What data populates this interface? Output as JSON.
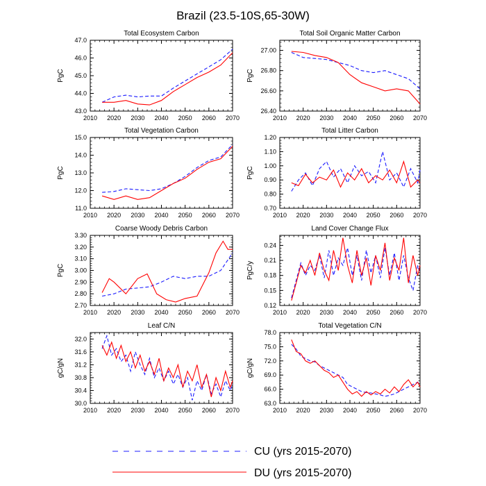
{
  "title": "Brazil (23.5-10S,65-30W)",
  "colors": {
    "cu": "#1a1aff",
    "du": "#ff0000",
    "axis": "#000000"
  },
  "legend": {
    "cu_label": "CU (yrs 2015-2070)",
    "du_label": "DU (yrs 2015-2070)"
  },
  "chart_data": [
    {
      "type": "line",
      "title": "Total Ecosystem Carbon",
      "ylabel": "PgC",
      "xlabel": "",
      "xlim": [
        2010,
        2070
      ],
      "xticks": [
        "2010",
        "2020",
        "2030",
        "2040",
        "2050",
        "2060",
        "2070"
      ],
      "ylim": [
        43.0,
        47.0
      ],
      "yticks": [
        "43.0",
        "44.0",
        "45.0",
        "46.0",
        "47.0"
      ],
      "series": [
        {
          "name": "CU",
          "x": [
            2015,
            2020,
            2025,
            2030,
            2035,
            2040,
            2045,
            2050,
            2055,
            2060,
            2065,
            2070
          ],
          "values": [
            43.5,
            43.8,
            43.9,
            43.8,
            43.85,
            43.85,
            44.3,
            44.7,
            45.1,
            45.5,
            45.9,
            46.5
          ]
        },
        {
          "name": "DU",
          "x": [
            2015,
            2020,
            2025,
            2030,
            2035,
            2040,
            2045,
            2050,
            2055,
            2060,
            2065,
            2070
          ],
          "values": [
            43.5,
            43.5,
            43.6,
            43.4,
            43.35,
            43.6,
            44.1,
            44.5,
            44.9,
            45.2,
            45.6,
            46.3
          ]
        }
      ]
    },
    {
      "type": "line",
      "title": "Total Soil Organic Matter Carbon",
      "ylabel": "PgC",
      "xlabel": "",
      "xlim": [
        2010,
        2070
      ],
      "xticks": [
        "2010",
        "2020",
        "2030",
        "2040",
        "2050",
        "2060",
        "2070"
      ],
      "ylim": [
        26.4,
        27.1
      ],
      "yticks": [
        "26.40",
        "26.60",
        "26.80",
        "27.00"
      ],
      "series": [
        {
          "name": "CU",
          "x": [
            2015,
            2020,
            2025,
            2030,
            2035,
            2040,
            2045,
            2050,
            2055,
            2060,
            2065,
            2070
          ],
          "values": [
            26.98,
            26.93,
            26.92,
            26.91,
            26.88,
            26.85,
            26.8,
            26.78,
            26.8,
            26.76,
            26.72,
            26.62
          ]
        },
        {
          "name": "DU",
          "x": [
            2015,
            2020,
            2025,
            2030,
            2035,
            2040,
            2045,
            2050,
            2055,
            2060,
            2065,
            2070
          ],
          "values": [
            26.99,
            26.98,
            26.95,
            26.93,
            26.88,
            26.76,
            26.68,
            26.64,
            26.6,
            26.62,
            26.6,
            26.47
          ]
        }
      ]
    },
    {
      "type": "line",
      "title": "Total Vegetation Carbon",
      "ylabel": "PgC",
      "xlabel": "",
      "xlim": [
        2010,
        2070
      ],
      "xticks": [
        "2010",
        "2020",
        "2030",
        "2040",
        "2050",
        "2060",
        "2070"
      ],
      "ylim": [
        11.0,
        15.0
      ],
      "yticks": [
        "11.0",
        "12.0",
        "13.0",
        "14.0",
        "15.0"
      ],
      "series": [
        {
          "name": "CU",
          "x": [
            2015,
            2020,
            2025,
            2030,
            2035,
            2040,
            2045,
            2050,
            2055,
            2060,
            2065,
            2070
          ],
          "values": [
            11.9,
            11.95,
            12.1,
            12.05,
            12.0,
            12.1,
            12.4,
            12.8,
            13.3,
            13.7,
            13.9,
            14.6
          ]
        },
        {
          "name": "DU",
          "x": [
            2015,
            2020,
            2025,
            2030,
            2035,
            2040,
            2045,
            2050,
            2055,
            2060,
            2065,
            2070
          ],
          "values": [
            11.7,
            11.5,
            11.7,
            11.5,
            11.6,
            12.0,
            12.4,
            12.7,
            13.2,
            13.6,
            13.8,
            14.5
          ]
        }
      ]
    },
    {
      "type": "line",
      "title": "Total Litter Carbon",
      "ylabel": "PgC",
      "xlabel": "",
      "xlim": [
        2010,
        2070
      ],
      "xticks": [
        "2010",
        "2020",
        "2030",
        "2040",
        "2050",
        "2060",
        "2070"
      ],
      "ylim": [
        0.7,
        1.2
      ],
      "yticks": [
        "0.70",
        "0.80",
        "0.90",
        "1.00",
        "1.10",
        "1.20"
      ],
      "series": [
        {
          "name": "CU",
          "x": [
            2015,
            2018,
            2021,
            2024,
            2027,
            2030,
            2033,
            2036,
            2039,
            2042,
            2045,
            2048,
            2051,
            2054,
            2057,
            2060,
            2063,
            2066,
            2069,
            2070
          ],
          "values": [
            0.82,
            0.9,
            0.95,
            0.86,
            0.98,
            1.03,
            0.92,
            0.98,
            0.88,
            1.0,
            0.93,
            0.96,
            0.88,
            1.1,
            0.9,
            0.95,
            0.85,
            0.98,
            0.88,
            0.97
          ]
        },
        {
          "name": "DU",
          "x": [
            2015,
            2018,
            2021,
            2024,
            2027,
            2030,
            2033,
            2036,
            2039,
            2042,
            2045,
            2048,
            2051,
            2054,
            2057,
            2060,
            2063,
            2066,
            2069,
            2070
          ],
          "values": [
            0.88,
            0.86,
            0.94,
            0.88,
            0.92,
            0.9,
            0.97,
            0.85,
            0.95,
            0.9,
            0.98,
            0.88,
            0.93,
            0.9,
            0.97,
            0.88,
            1.03,
            0.85,
            0.9,
            0.88
          ]
        }
      ]
    },
    {
      "type": "line",
      "title": "Coarse Woody Debris Carbon",
      "ylabel": "PgC",
      "xlabel": "",
      "xlim": [
        2010,
        2070
      ],
      "xticks": [
        "2010",
        "2020",
        "2030",
        "2040",
        "2050",
        "2060",
        "2070"
      ],
      "ylim": [
        2.7,
        3.3
      ],
      "yticks": [
        "2.70",
        "2.80",
        "2.90",
        "3.00",
        "3.10",
        "3.20",
        "3.30"
      ],
      "series": [
        {
          "name": "CU",
          "x": [
            2015,
            2020,
            2025,
            2030,
            2035,
            2040,
            2045,
            2050,
            2055,
            2060,
            2065,
            2070
          ],
          "values": [
            2.78,
            2.8,
            2.84,
            2.85,
            2.86,
            2.9,
            2.95,
            2.93,
            2.95,
            2.95,
            3.0,
            3.15
          ]
        },
        {
          "name": "DU",
          "x": [
            2015,
            2018,
            2020,
            2025,
            2030,
            2034,
            2038,
            2042,
            2046,
            2050,
            2055,
            2060,
            2063,
            2066,
            2068,
            2070
          ],
          "values": [
            2.81,
            2.93,
            2.9,
            2.8,
            2.93,
            2.97,
            2.8,
            2.75,
            2.73,
            2.76,
            2.78,
            2.98,
            3.15,
            3.25,
            3.18,
            3.18
          ]
        }
      ]
    },
    {
      "type": "line",
      "title": "Land Cover Change Flux",
      "ylabel": "PgC/y",
      "xlabel": "",
      "xlim": [
        2010,
        2070
      ],
      "xticks": [
        "2010",
        "2020",
        "2030",
        "2040",
        "2050",
        "2060",
        "2070"
      ],
      "ylim": [
        0.12,
        0.26
      ],
      "yticks": [
        "0.12",
        "0.15",
        "0.18",
        "0.21",
        "0.24"
      ],
      "series": [
        {
          "name": "CU",
          "x": [
            2015,
            2017,
            2019,
            2021,
            2023,
            2025,
            2027,
            2029,
            2031,
            2033,
            2035,
            2037,
            2039,
            2041,
            2043,
            2045,
            2047,
            2049,
            2051,
            2053,
            2055,
            2057,
            2059,
            2061,
            2063,
            2065,
            2067,
            2069,
            2070
          ],
          "values": [
            0.135,
            0.17,
            0.205,
            0.18,
            0.2,
            0.19,
            0.22,
            0.175,
            0.23,
            0.18,
            0.215,
            0.2,
            0.235,
            0.18,
            0.22,
            0.17,
            0.23,
            0.185,
            0.22,
            0.175,
            0.235,
            0.18,
            0.225,
            0.17,
            0.22,
            0.175,
            0.15,
            0.2,
            0.185
          ]
        },
        {
          "name": "DU",
          "x": [
            2015,
            2017,
            2019,
            2021,
            2023,
            2025,
            2027,
            2029,
            2031,
            2033,
            2035,
            2037,
            2039,
            2041,
            2043,
            2045,
            2047,
            2049,
            2051,
            2053,
            2055,
            2057,
            2059,
            2061,
            2063,
            2065,
            2067,
            2069,
            2070
          ],
          "values": [
            0.13,
            0.165,
            0.2,
            0.185,
            0.21,
            0.18,
            0.225,
            0.19,
            0.17,
            0.23,
            0.19,
            0.255,
            0.2,
            0.165,
            0.23,
            0.18,
            0.215,
            0.16,
            0.22,
            0.19,
            0.245,
            0.17,
            0.215,
            0.19,
            0.255,
            0.165,
            0.22,
            0.18,
            0.2
          ]
        }
      ]
    },
    {
      "type": "line",
      "title": "Leaf C/N",
      "ylabel": "gC/gN",
      "xlabel": "",
      "xlim": [
        2010,
        2070
      ],
      "xticks": [
        "2010",
        "2020",
        "2030",
        "2040",
        "2050",
        "2060",
        "2070"
      ],
      "ylim": [
        30.0,
        32.2
      ],
      "yticks": [
        "30.0",
        "30.4",
        "30.8",
        "31.2",
        "31.6",
        "32.0"
      ],
      "series": [
        {
          "name": "CU",
          "x": [
            2015,
            2017,
            2019,
            2021,
            2023,
            2025,
            2027,
            2029,
            2031,
            2033,
            2035,
            2037,
            2039,
            2041,
            2043,
            2045,
            2047,
            2049,
            2051,
            2053,
            2055,
            2057,
            2059,
            2061,
            2063,
            2065,
            2067,
            2069,
            2070
          ],
          "values": [
            31.7,
            32.1,
            31.5,
            31.7,
            31.3,
            31.5,
            31.0,
            31.6,
            31.2,
            30.9,
            31.4,
            30.8,
            31.1,
            30.7,
            31.0,
            30.6,
            30.9,
            30.5,
            30.8,
            30.1,
            30.7,
            30.4,
            30.9,
            30.3,
            30.6,
            30.2,
            30.7,
            30.4,
            30.6
          ]
        },
        {
          "name": "DU",
          "x": [
            2015,
            2017,
            2019,
            2021,
            2023,
            2025,
            2027,
            2029,
            2031,
            2033,
            2035,
            2037,
            2039,
            2041,
            2043,
            2045,
            2047,
            2049,
            2051,
            2053,
            2055,
            2057,
            2059,
            2061,
            2063,
            2065,
            2067,
            2069,
            2070
          ],
          "values": [
            31.8,
            31.5,
            31.9,
            31.4,
            31.8,
            31.3,
            31.6,
            31.1,
            31.5,
            31.0,
            31.3,
            30.9,
            31.4,
            30.7,
            31.1,
            30.8,
            31.2,
            30.5,
            31.0,
            30.7,
            31.2,
            30.5,
            30.9,
            30.2,
            30.8,
            30.4,
            31.0,
            30.5,
            30.7
          ]
        }
      ]
    },
    {
      "type": "line",
      "title": "Total Vegetation C/N",
      "ylabel": "gC/gN",
      "xlabel": "",
      "xlim": [
        2010,
        2070
      ],
      "xticks": [
        "2010",
        "2020",
        "2030",
        "2040",
        "2050",
        "2060",
        "2070"
      ],
      "ylim": [
        63.0,
        78.0
      ],
      "yticks": [
        "63.0",
        "66.0",
        "69.0",
        "72.0",
        "75.0",
        "78.0"
      ],
      "series": [
        {
          "name": "CU",
          "x": [
            2015,
            2017,
            2019,
            2021,
            2023,
            2025,
            2027,
            2029,
            2031,
            2033,
            2035,
            2037,
            2039,
            2041,
            2043,
            2045,
            2047,
            2049,
            2051,
            2053,
            2055,
            2057,
            2059,
            2061,
            2063,
            2065,
            2067,
            2069,
            2070
          ],
          "values": [
            75.5,
            74.5,
            73.0,
            72.5,
            72.0,
            71.8,
            71.0,
            70.5,
            70.0,
            69.5,
            69.0,
            68.5,
            67.0,
            66.5,
            66.0,
            65.5,
            65.3,
            65.2,
            65.0,
            64.8,
            64.5,
            64.7,
            65.0,
            65.5,
            66.0,
            66.5,
            67.0,
            67.5,
            67.0
          ]
        },
        {
          "name": "DU",
          "x": [
            2015,
            2017,
            2019,
            2021,
            2023,
            2025,
            2027,
            2029,
            2031,
            2033,
            2035,
            2037,
            2039,
            2041,
            2043,
            2045,
            2047,
            2049,
            2051,
            2053,
            2055,
            2057,
            2059,
            2061,
            2063,
            2065,
            2067,
            2069,
            2070
          ],
          "values": [
            76.5,
            74.0,
            73.5,
            72.0,
            71.5,
            72.0,
            71.0,
            70.0,
            69.5,
            68.5,
            69.0,
            67.5,
            66.0,
            65.0,
            65.5,
            64.5,
            65.5,
            64.8,
            65.5,
            65.0,
            66.0,
            65.2,
            66.5,
            65.5,
            67.0,
            68.0,
            66.5,
            67.5,
            66.5
          ]
        }
      ]
    }
  ]
}
